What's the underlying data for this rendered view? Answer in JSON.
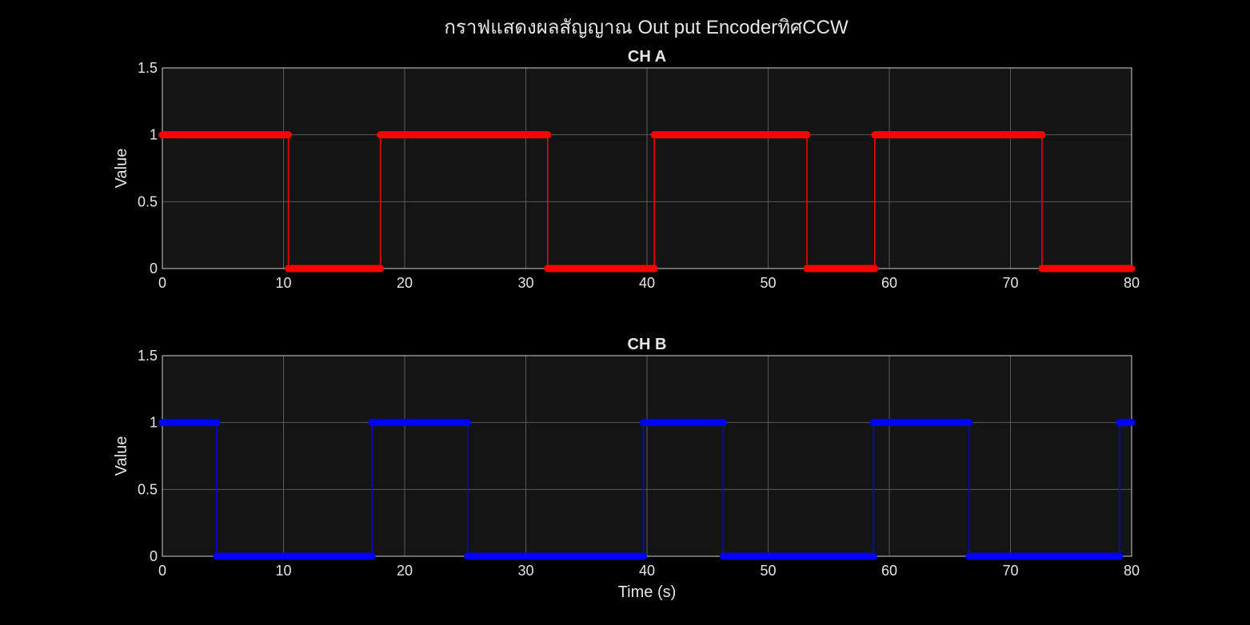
{
  "figure_title": "กราฟแสดงผลสัญญาณ Out put EncoderทิศCCW",
  "colors": {
    "background": "#000000",
    "axes_bg": "#141414",
    "ch_a": "#ff0000",
    "ch_b": "#0000ff",
    "text": "#e6e6e6"
  },
  "chart_data": [
    {
      "type": "line",
      "title": "CH A",
      "xlabel": "",
      "ylabel": "Value",
      "xlim": [
        0,
        80
      ],
      "ylim": [
        0,
        1.5
      ],
      "xticks": [
        "0",
        "10",
        "20",
        "30",
        "40",
        "50",
        "60",
        "70",
        "80"
      ],
      "yticks": [
        "0",
        "0.5",
        "1",
        "1.5"
      ],
      "grid": true,
      "color": "#ff0000",
      "series": [
        {
          "segments": [
            {
              "x0": 0.0,
              "x1": 10.4,
              "y": 1
            },
            {
              "x0": 10.4,
              "x1": 18.0,
              "y": 0
            },
            {
              "x0": 18.0,
              "x1": 31.8,
              "y": 1
            },
            {
              "x0": 31.8,
              "x1": 40.6,
              "y": 0
            },
            {
              "x0": 40.6,
              "x1": 53.2,
              "y": 1
            },
            {
              "x0": 53.2,
              "x1": 58.8,
              "y": 0
            },
            {
              "x0": 58.8,
              "x1": 72.6,
              "y": 1
            },
            {
              "x0": 72.6,
              "x1": 80.0,
              "y": 0
            }
          ]
        }
      ]
    },
    {
      "type": "line",
      "title": "CH B",
      "xlabel": "Time (s)",
      "ylabel": "Value",
      "xlim": [
        0,
        80
      ],
      "ylim": [
        0,
        1.5
      ],
      "xticks": [
        "0",
        "10",
        "20",
        "30",
        "40",
        "50",
        "60",
        "70",
        "80"
      ],
      "yticks": [
        "0",
        "0.5",
        "1",
        "1.5"
      ],
      "grid": true,
      "color": "#0000ff",
      "series": [
        {
          "segments": [
            {
              "x0": 0.0,
              "x1": 4.5,
              "y": 1
            },
            {
              "x0": 4.5,
              "x1": 17.3,
              "y": 0
            },
            {
              "x0": 17.3,
              "x1": 25.2,
              "y": 1
            },
            {
              "x0": 25.2,
              "x1": 39.7,
              "y": 0
            },
            {
              "x0": 39.7,
              "x1": 46.3,
              "y": 1
            },
            {
              "x0": 46.3,
              "x1": 58.7,
              "y": 0
            },
            {
              "x0": 58.7,
              "x1": 66.6,
              "y": 1
            },
            {
              "x0": 66.6,
              "x1": 79.0,
              "y": 0
            },
            {
              "x0": 79.0,
              "x1": 80.0,
              "y": 1
            }
          ]
        }
      ]
    }
  ]
}
